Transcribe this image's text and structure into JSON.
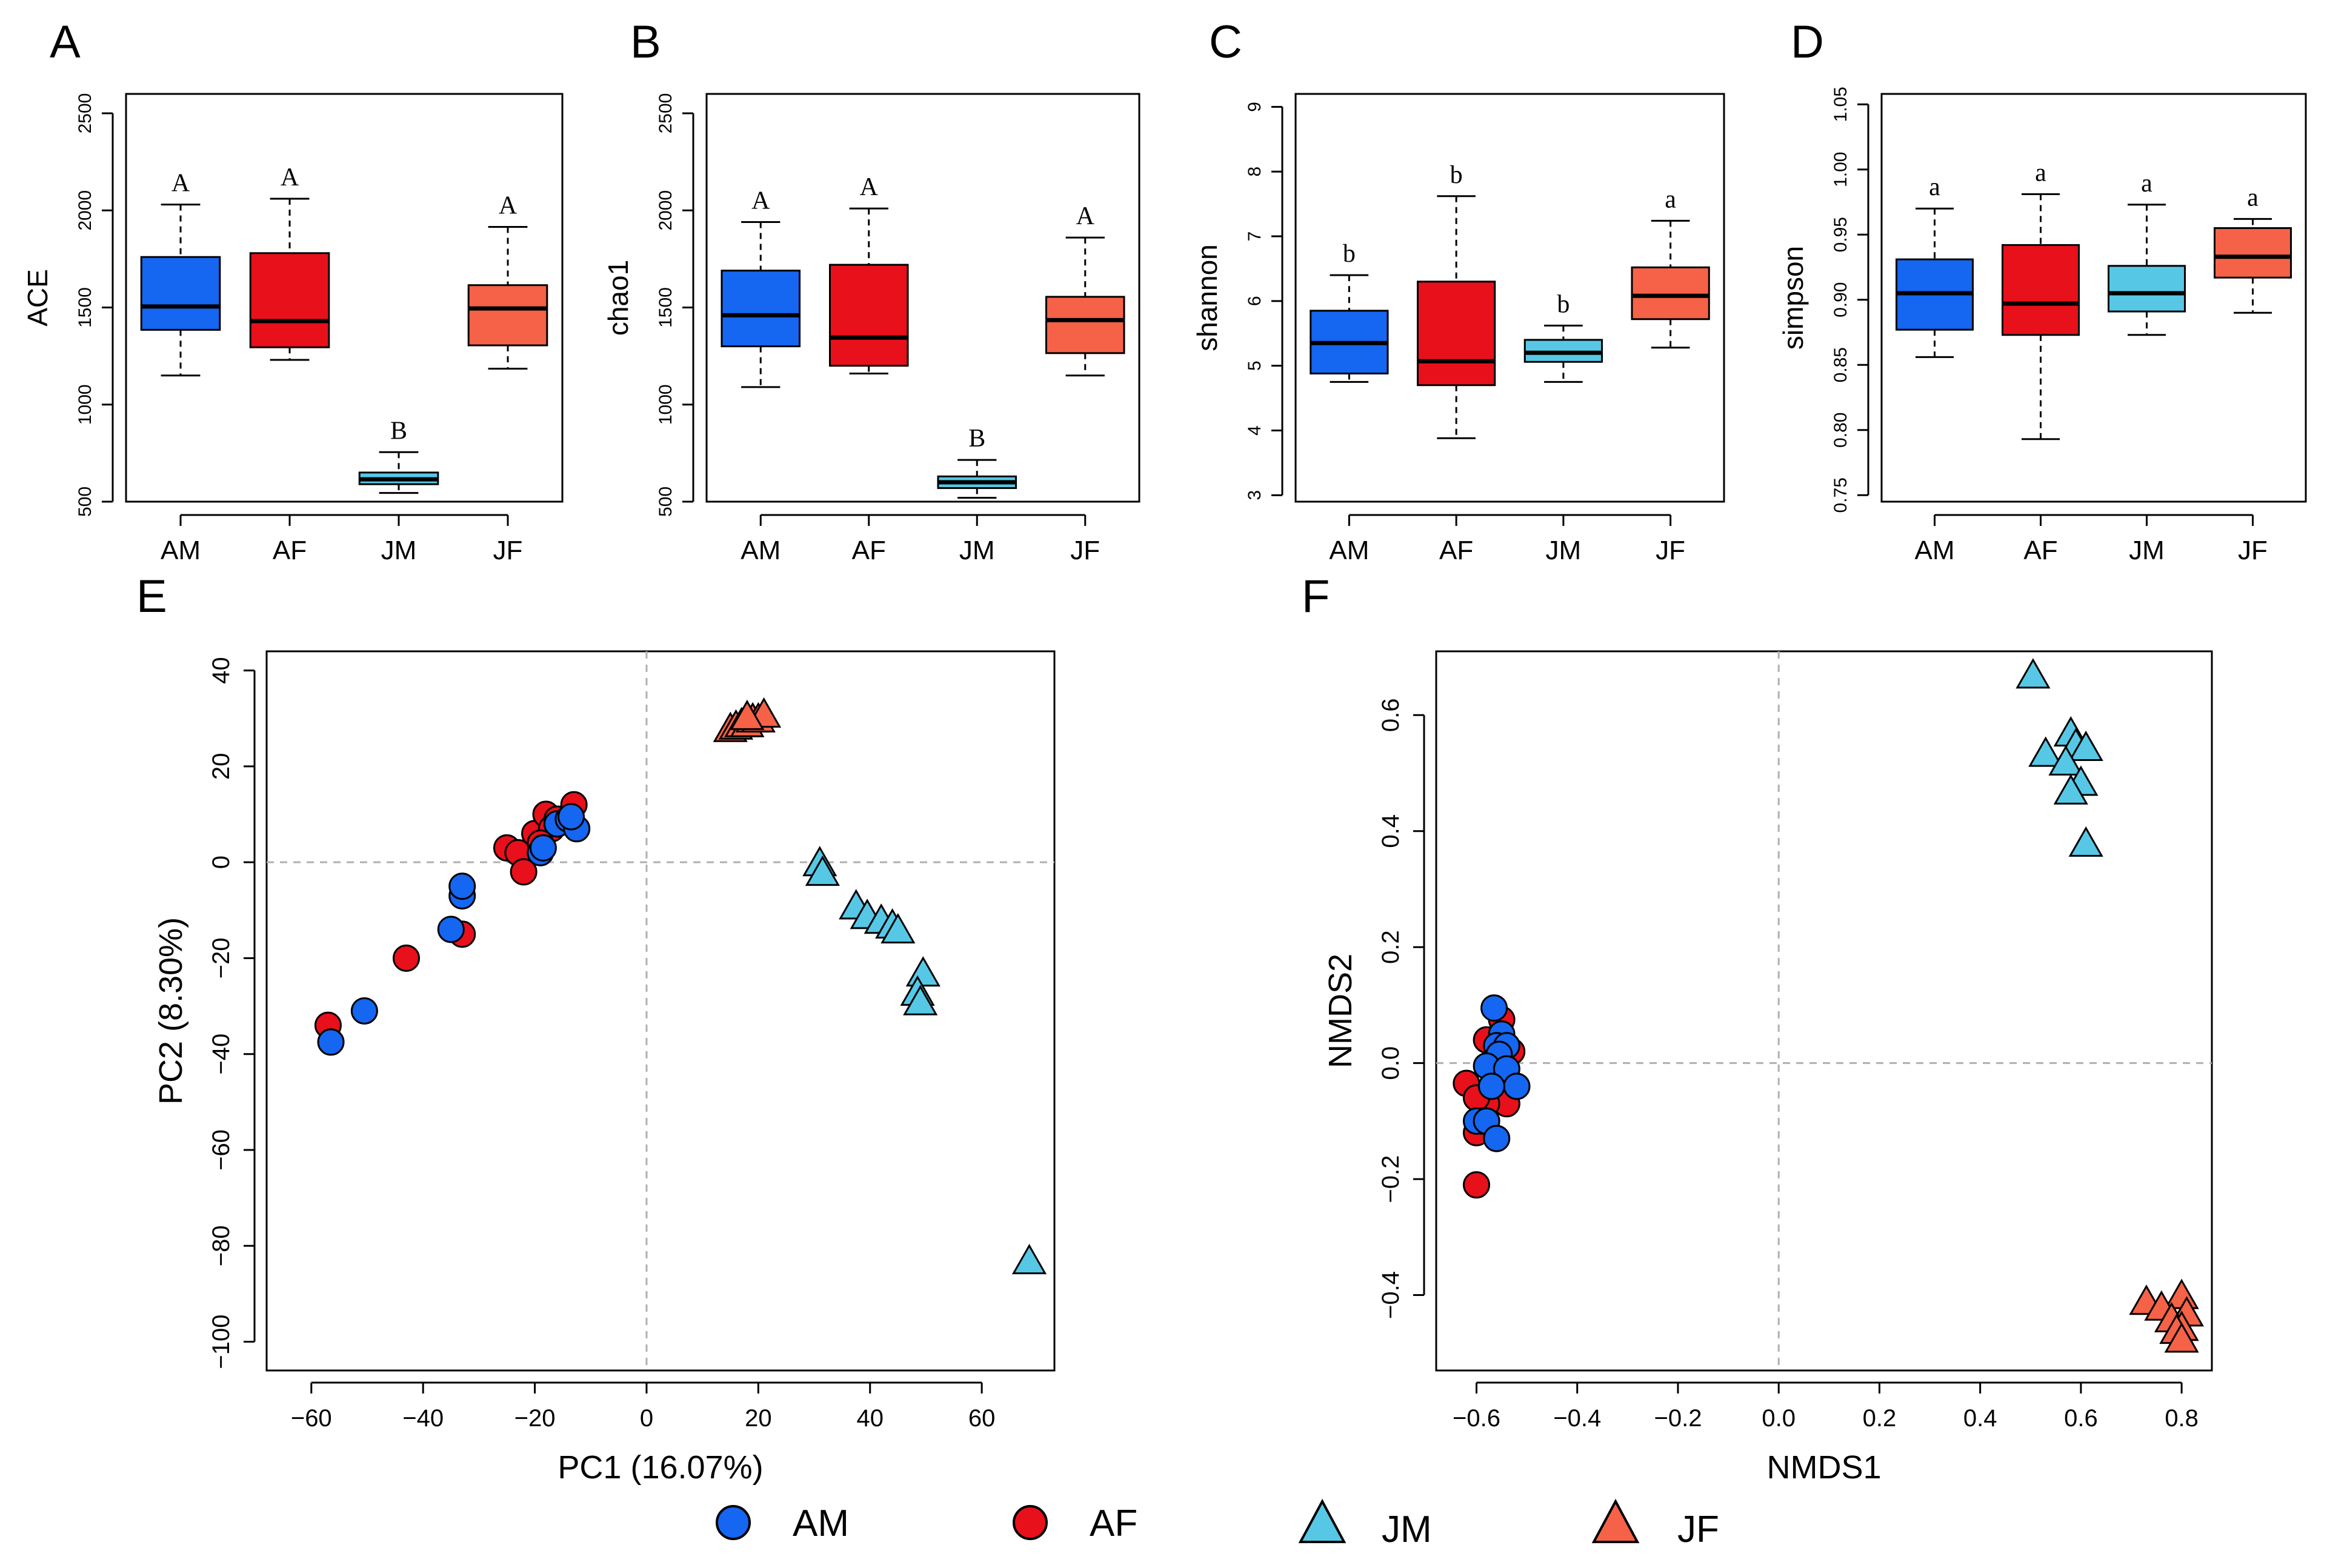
{
  "colors": {
    "AM": "#1566f0",
    "AF": "#e8101a",
    "JM": "#56c8e6",
    "JF": "#f56247",
    "outline": "#000000",
    "refline": "#b0b0b0"
  },
  "legend": {
    "items": [
      {
        "label": "AM",
        "shape": "circle",
        "color_key": "AM"
      },
      {
        "label": "AF",
        "shape": "circle",
        "color_key": "AF"
      },
      {
        "label": "JM",
        "shape": "triangle",
        "color_key": "JM"
      },
      {
        "label": "JF",
        "shape": "triangle",
        "color_key": "JF"
      }
    ]
  },
  "chart_data": [
    {
      "panel": "A",
      "type": "box",
      "ylabel": "ACE",
      "ylim": [
        500,
        2600
      ],
      "yticks": [
        500,
        1000,
        1500,
        2000,
        2500
      ],
      "categories": [
        "AM",
        "AF",
        "JM",
        "JF"
      ],
      "boxes": [
        {
          "group": "AM",
          "min": 1150,
          "q1": 1385,
          "median": 1505,
          "q3": 1760,
          "max": 2030,
          "letter": "A"
        },
        {
          "group": "AF",
          "min": 1230,
          "q1": 1295,
          "median": 1430,
          "q3": 1780,
          "max": 2060,
          "letter": "A"
        },
        {
          "group": "JM",
          "min": 545,
          "q1": 590,
          "median": 615,
          "q3": 650,
          "max": 755,
          "letter": "B"
        },
        {
          "group": "JF",
          "min": 1185,
          "q1": 1305,
          "median": 1495,
          "q3": 1615,
          "max": 1915,
          "letter": "A"
        }
      ]
    },
    {
      "panel": "B",
      "type": "box",
      "ylabel": "chao1",
      "ylim": [
        500,
        2600
      ],
      "yticks": [
        500,
        1000,
        1500,
        2000,
        2500
      ],
      "categories": [
        "AM",
        "AF",
        "JM",
        "JF"
      ],
      "boxes": [
        {
          "group": "AM",
          "min": 1090,
          "q1": 1300,
          "median": 1460,
          "q3": 1690,
          "max": 1940,
          "letter": "A"
        },
        {
          "group": "AF",
          "min": 1160,
          "q1": 1200,
          "median": 1345,
          "q3": 1720,
          "max": 2010,
          "letter": "A"
        },
        {
          "group": "JM",
          "min": 520,
          "q1": 570,
          "median": 600,
          "q3": 630,
          "max": 715,
          "letter": "B"
        },
        {
          "group": "JF",
          "min": 1150,
          "q1": 1265,
          "median": 1435,
          "q3": 1555,
          "max": 1860,
          "letter": "A"
        }
      ]
    },
    {
      "panel": "C",
      "type": "box",
      "ylabel": "shannon",
      "ylim": [
        2.9,
        9.2
      ],
      "yticks": [
        3,
        4,
        5,
        6,
        7,
        8,
        9
      ],
      "categories": [
        "AM",
        "AF",
        "JM",
        "JF"
      ],
      "boxes": [
        {
          "group": "AM",
          "min": 4.75,
          "q1": 4.88,
          "median": 5.35,
          "q3": 5.85,
          "max": 6.4,
          "letter": "b"
        },
        {
          "group": "AF",
          "min": 3.88,
          "q1": 4.7,
          "median": 5.07,
          "q3": 6.3,
          "max": 7.62,
          "letter": "b"
        },
        {
          "group": "JM",
          "min": 4.75,
          "q1": 5.06,
          "median": 5.2,
          "q3": 5.4,
          "max": 5.62,
          "letter": "b"
        },
        {
          "group": "JF",
          "min": 5.28,
          "q1": 5.72,
          "median": 6.08,
          "q3": 6.52,
          "max": 7.24,
          "letter": "a"
        }
      ]
    },
    {
      "panel": "D",
      "type": "box",
      "ylabel": "simpson",
      "ylim": [
        0.745,
        1.058
      ],
      "yticks": [
        0.75,
        0.8,
        0.85,
        0.9,
        0.95,
        1.0,
        1.05
      ],
      "ytick_labels": [
        "0.75",
        "0.80",
        "0.85",
        "0.90",
        "0.95",
        "1.00",
        "1.05"
      ],
      "categories": [
        "AM",
        "AF",
        "JM",
        "JF"
      ],
      "boxes": [
        {
          "group": "AM",
          "min": 0.856,
          "q1": 0.877,
          "median": 0.905,
          "q3": 0.931,
          "max": 0.97,
          "letter": "a"
        },
        {
          "group": "AF",
          "min": 0.793,
          "q1": 0.873,
          "median": 0.897,
          "q3": 0.942,
          "max": 0.981,
          "letter": "a"
        },
        {
          "group": "JM",
          "min": 0.873,
          "q1": 0.891,
          "median": 0.905,
          "q3": 0.926,
          "max": 0.973,
          "letter": "a"
        },
        {
          "group": "JF",
          "min": 0.89,
          "q1": 0.917,
          "median": 0.933,
          "q3": 0.955,
          "max": 0.962,
          "letter": "a"
        }
      ]
    },
    {
      "panel": "E",
      "type": "scatter",
      "xlabel": "PC1 (16.07%)",
      "ylabel": "PC2 (8.30%)",
      "xlim": [
        -68,
        73
      ],
      "ylim": [
        -106,
        44
      ],
      "xticks": [
        -60,
        -40,
        -20,
        0,
        20,
        40,
        60
      ],
      "xtick_labels": [
        "−60",
        "−40",
        "−20",
        "0",
        "20",
        "40",
        "60"
      ],
      "yticks": [
        -100,
        -80,
        -60,
        -40,
        -20,
        0,
        20,
        40
      ],
      "ytick_labels": [
        "−100",
        "−80",
        "−60",
        "−40",
        "−20",
        "0",
        "20",
        "40"
      ],
      "reference_lines": {
        "x": 0,
        "y": 0
      },
      "series": [
        {
          "name": "AF",
          "shape": "circle",
          "points": [
            [
              -57,
              -34
            ],
            [
              -43,
              -20
            ],
            [
              -33,
              -15
            ],
            [
              -25,
              3
            ],
            [
              -23,
              2
            ],
            [
              -22,
              -2
            ],
            [
              -20,
              6
            ],
            [
              -18,
              10
            ],
            [
              -17,
              7
            ],
            [
              -16,
              9
            ],
            [
              -13,
              12
            ],
            [
              -19,
              4
            ]
          ]
        },
        {
          "name": "AM",
          "shape": "circle",
          "points": [
            [
              -56.5,
              -37.5
            ],
            [
              -50.5,
              -31
            ],
            [
              -35,
              -14
            ],
            [
              -33,
              -7
            ],
            [
              -33,
              -5
            ],
            [
              -19,
              2
            ],
            [
              -18.5,
              3
            ],
            [
              -16,
              8
            ],
            [
              -14,
              9
            ],
            [
              -12.5,
              7
            ],
            [
              -13.5,
              9.5
            ]
          ]
        },
        {
          "name": "JF",
          "shape": "triangle",
          "points": [
            [
              15,
              28
            ],
            [
              16,
              28.5
            ],
            [
              17,
              29
            ],
            [
              18,
              29
            ],
            [
              19,
              30
            ],
            [
              20,
              30
            ],
            [
              21,
              31
            ],
            [
              18,
              30.5
            ]
          ]
        },
        {
          "name": "JM",
          "shape": "triangle",
          "points": [
            [
              31,
              0
            ],
            [
              31.5,
              -2
            ],
            [
              37.5,
              -9
            ],
            [
              39.5,
              -11
            ],
            [
              42,
              -12
            ],
            [
              44,
              -13
            ],
            [
              45,
              -14
            ],
            [
              49.5,
              -23
            ],
            [
              48.5,
              -27
            ],
            [
              49,
              -29
            ],
            [
              68.5,
              -83
            ]
          ]
        }
      ]
    },
    {
      "panel": "F",
      "type": "scatter",
      "xlabel": "NMDS1",
      "ylabel": "NMDS2",
      "xlim": [
        -0.68,
        0.86
      ],
      "ylim": [
        -0.53,
        0.71
      ],
      "xticks": [
        -0.6,
        -0.4,
        -0.2,
        0.0,
        0.2,
        0.4,
        0.6,
        0.8
      ],
      "xtick_labels": [
        "−0.6",
        "−0.4",
        "−0.2",
        "0.0",
        "0.2",
        "0.4",
        "0.6",
        "0.8"
      ],
      "yticks": [
        -0.4,
        -0.2,
        0.0,
        0.2,
        0.4,
        0.6
      ],
      "ytick_labels": [
        "−0.4",
        "−0.2",
        "0.0",
        "0.2",
        "0.4",
        "0.6"
      ],
      "reference_lines": {
        "x": 0,
        "y": 0
      },
      "series": [
        {
          "name": "AF",
          "shape": "circle",
          "points": [
            [
              -0.6,
              -0.21
            ],
            [
              -0.6,
              -0.12
            ],
            [
              -0.62,
              -0.035
            ],
            [
              -0.58,
              0.04
            ],
            [
              -0.55,
              0.075
            ],
            [
              -0.54,
              -0.07
            ],
            [
              -0.58,
              -0.07
            ],
            [
              -0.6,
              -0.06
            ],
            [
              -0.56,
              -0.02
            ],
            [
              -0.53,
              0.02
            ],
            [
              -0.59,
              -0.1
            ]
          ]
        },
        {
          "name": "AM",
          "shape": "circle",
          "points": [
            [
              -0.565,
              0.095
            ],
            [
              -0.55,
              0.05
            ],
            [
              -0.56,
              0.03
            ],
            [
              -0.54,
              0.03
            ],
            [
              -0.555,
              0.015
            ],
            [
              -0.58,
              -0.005
            ],
            [
              -0.54,
              -0.01
            ],
            [
              -0.52,
              -0.04
            ],
            [
              -0.57,
              -0.04
            ],
            [
              -0.6,
              -0.1
            ],
            [
              -0.58,
              -0.1
            ],
            [
              -0.56,
              -0.13
            ]
          ]
        },
        {
          "name": "JM",
          "shape": "triangle",
          "points": [
            [
              0.505,
              0.67
            ],
            [
              0.58,
              0.57
            ],
            [
              0.59,
              0.55
            ],
            [
              0.61,
              0.545
            ],
            [
              0.53,
              0.535
            ],
            [
              0.57,
              0.52
            ],
            [
              0.6,
              0.485
            ],
            [
              0.58,
              0.47
            ],
            [
              0.61,
              0.38
            ]
          ]
        },
        {
          "name": "JF",
          "shape": "triangle",
          "points": [
            [
              0.73,
              -0.41
            ],
            [
              0.8,
              -0.4
            ],
            [
              0.76,
              -0.42
            ],
            [
              0.81,
              -0.43
            ],
            [
              0.78,
              -0.44
            ],
            [
              0.8,
              -0.455
            ],
            [
              0.79,
              -0.46
            ],
            [
              0.8,
              -0.475
            ]
          ]
        }
      ]
    }
  ]
}
